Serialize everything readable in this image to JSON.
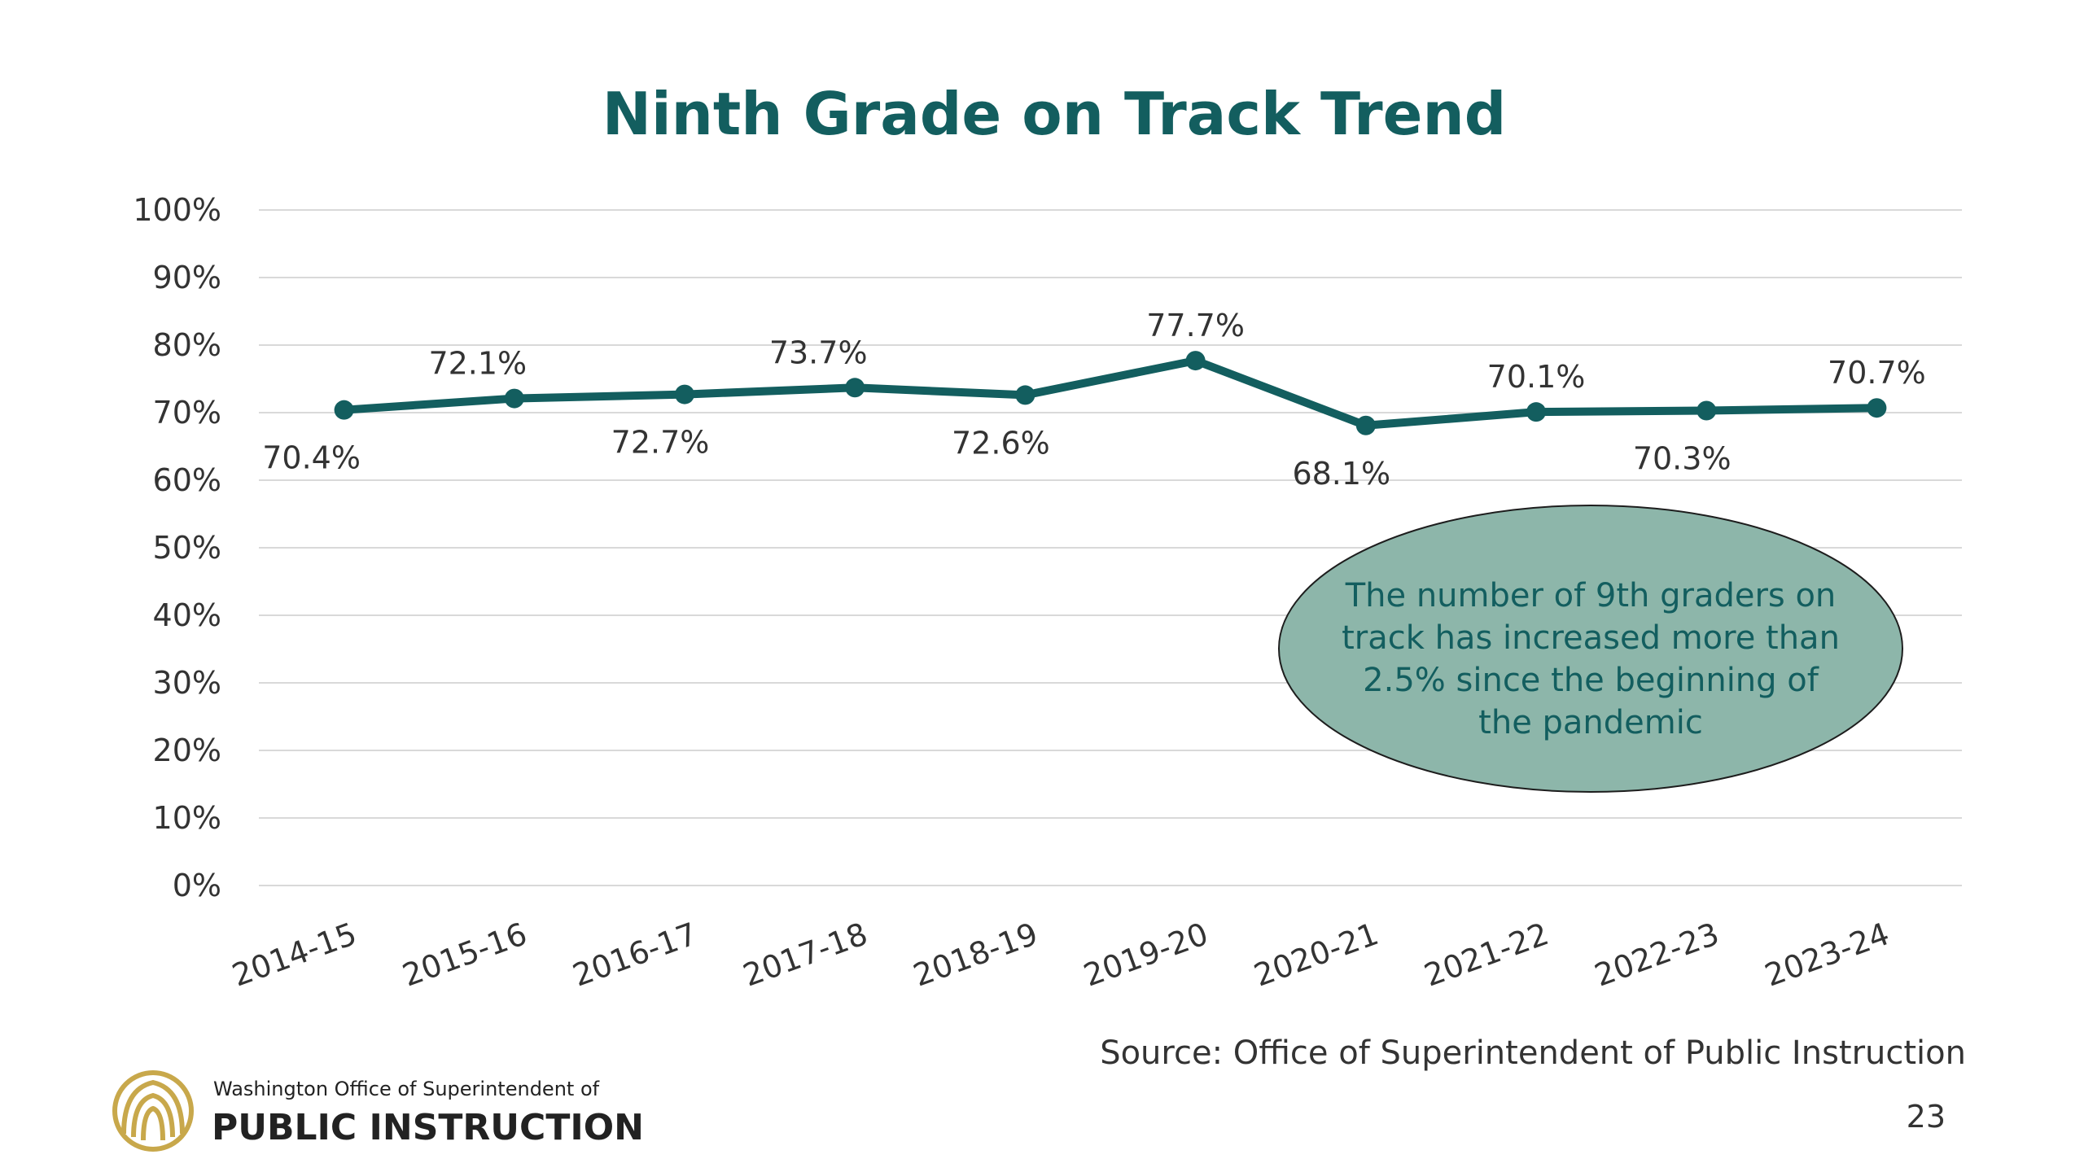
{
  "chart_data": {
    "type": "line",
    "title": "Ninth Grade on Track Trend",
    "categories": [
      "2014-15",
      "2015-16",
      "2016-17",
      "2017-18",
      "2018-19",
      "2019-20",
      "2020-21",
      "2021-22",
      "2022-23",
      "2023-24"
    ],
    "values": [
      70.4,
      72.1,
      72.7,
      73.7,
      72.6,
      77.7,
      68.1,
      70.1,
      70.3,
      70.7
    ],
    "data_labels": [
      "70.4%",
      "72.1%",
      "72.7%",
      "73.7%",
      "72.6%",
      "77.7%",
      "68.1%",
      "70.1%",
      "70.3%",
      "70.7%"
    ],
    "y_tick_labels": [
      "0%",
      "10%",
      "20%",
      "30%",
      "40%",
      "50%",
      "60%",
      "70%",
      "80%",
      "90%",
      "100%"
    ],
    "ylim": [
      0,
      100
    ],
    "xlabel": "",
    "ylabel": "",
    "grid": true,
    "legend": "none",
    "line_color": "#135e5f"
  },
  "callout": {
    "lines": [
      "The number of 9th graders on",
      "track has increased more than",
      "2.5% since the beginning of",
      "the pandemic"
    ],
    "fill_color": "#8db6aa"
  },
  "source": "Source: Office of Superintendent of Public Instruction",
  "page_number": "23",
  "logo": {
    "line1": "Washington Office of Superintendent of",
    "line2": "PUBLIC INSTRUCTION",
    "color": "#c8a84b"
  },
  "colors": {
    "title": "#135e5f",
    "gridline": "#d9d9d9",
    "text": "#333333"
  }
}
